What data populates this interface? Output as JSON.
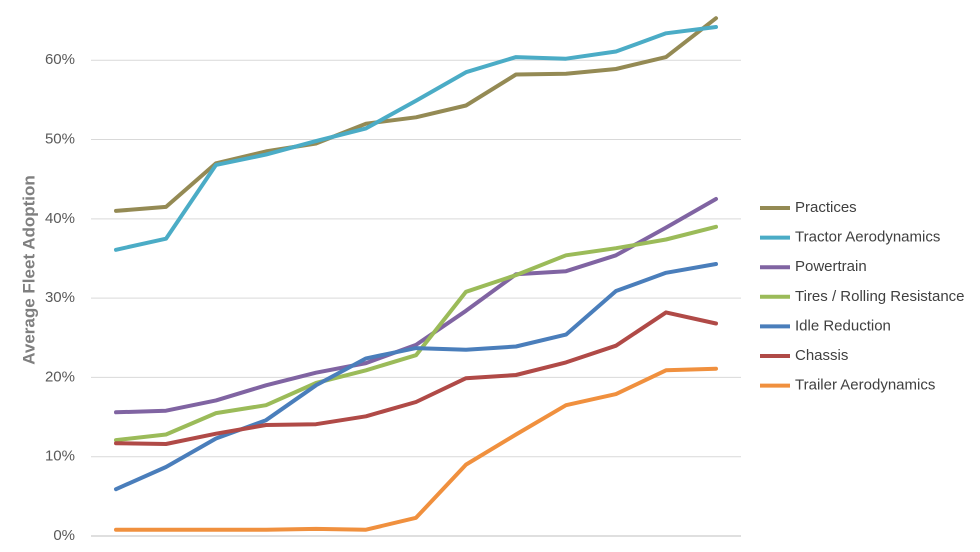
{
  "chart_data": {
    "type": "line",
    "y_label": "Average Fleet Adoption",
    "categories": [
      null,
      null,
      null,
      null,
      null,
      null,
      null,
      null,
      null,
      null,
      null,
      null,
      null
    ],
    "series": [
      {
        "name": "Practices",
        "color": "#948a54",
        "values": [
          41.0,
          41.5,
          47.0,
          48.5,
          49.5,
          52.0,
          52.8,
          54.3,
          58.2,
          58.3,
          58.9,
          60.4,
          65.3
        ]
      },
      {
        "name": "Tractor Aerodynamics",
        "color": "#4bacc6",
        "values": [
          36.1,
          37.5,
          46.8,
          48.1,
          49.8,
          51.4,
          54.9,
          58.5,
          60.4,
          60.2,
          61.1,
          63.4,
          64.2
        ]
      },
      {
        "name": "Powertrain",
        "color": "#8064a2",
        "values": [
          15.6,
          15.8,
          17.1,
          19.0,
          20.6,
          21.8,
          24.1,
          28.4,
          33.0,
          33.4,
          35.4,
          38.9,
          42.5
        ]
      },
      {
        "name": "Tires / Rolling Resistance",
        "color": "#9bbb59",
        "values": [
          12.1,
          12.8,
          15.5,
          16.5,
          19.3,
          20.9,
          22.8,
          30.8,
          32.9,
          35.4,
          36.3,
          37.4,
          39.0
        ]
      },
      {
        "name": "Idle Reduction",
        "color": "#4a7ebb",
        "values": [
          5.9,
          8.7,
          12.3,
          14.6,
          19.0,
          22.4,
          23.7,
          23.5,
          23.9,
          25.4,
          30.9,
          33.2,
          34.3
        ]
      },
      {
        "name": "Chassis",
        "color": "#b04a47",
        "values": [
          11.7,
          11.6,
          12.9,
          14.0,
          14.1,
          15.1,
          16.9,
          19.9,
          20.3,
          21.9,
          24.0,
          28.2,
          26.8
        ]
      },
      {
        "name": "Trailer Aerodynamics",
        "color": "#f0903e",
        "values": [
          0.8,
          0.8,
          0.8,
          0.8,
          0.9,
          0.8,
          2.3,
          9.0,
          12.8,
          16.5,
          17.9,
          20.9,
          21.1
        ]
      }
    ],
    "ylim": [
      0,
      67.6
    ],
    "yticks": [
      {
        "value": 0,
        "label": "0%"
      },
      {
        "value": 10,
        "label": "10%"
      },
      {
        "value": 20,
        "label": "20%"
      },
      {
        "value": 30,
        "label": "30%"
      },
      {
        "value": 40,
        "label": "40%"
      },
      {
        "value": 50,
        "label": "50%"
      },
      {
        "value": 60,
        "label": "60%"
      }
    ],
    "grid": true,
    "legend": "right"
  }
}
